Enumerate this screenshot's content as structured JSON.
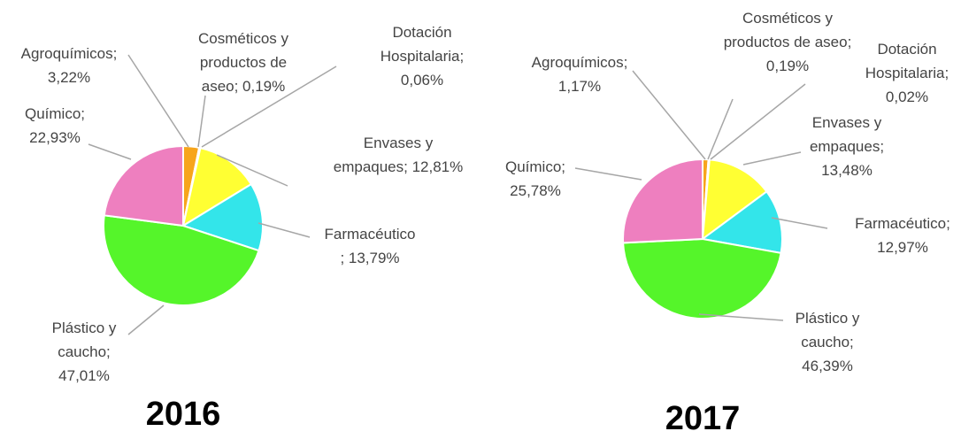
{
  "chart_data": [
    {
      "type": "pie",
      "title": "2016",
      "labels": [
        [
          "Agroquímicos;",
          "3,22%"
        ],
        [
          "Cosméticos y",
          "productos de",
          "aseo; 0,19%"
        ],
        [
          "Dotación",
          "Hospitalaria;",
          "0,06%"
        ],
        [
          "Envases y",
          "empaques; 12,81%"
        ],
        [
          "Farmacéutico",
          "; 13,79%"
        ],
        [
          "Plástico y",
          "caucho;",
          "47,01%"
        ],
        [
          "Químico;",
          "22,93%"
        ]
      ],
      "values": [
        3.22,
        0.19,
        0.06,
        12.81,
        13.79,
        47.01,
        22.93
      ],
      "colors": [
        "#f7a51c",
        "#c8f08a",
        "#b0b0b0",
        "#ffff33",
        "#33e5ea",
        "#55f52a",
        "#ee7fbf"
      ]
    },
    {
      "type": "pie",
      "title": "2017",
      "labels": [
        [
          "Agroquímicos;",
          "1,17%"
        ],
        [
          "Cosméticos y",
          "productos de aseo;",
          "0,19%"
        ],
        [
          "Dotación",
          "Hospitalaria;",
          "0,02%"
        ],
        [
          "Envases y",
          "empaques;",
          "13,48%"
        ],
        [
          "Farmacéutico;",
          "12,97%"
        ],
        [
          "Plástico y",
          "caucho;",
          "46,39%"
        ],
        [
          "Químico;",
          "25,78%"
        ]
      ],
      "values": [
        1.17,
        0.19,
        0.02,
        13.48,
        12.97,
        46.39,
        25.78
      ],
      "colors": [
        "#f7a51c",
        "#c8f08a",
        "#b0b0b0",
        "#ffff33",
        "#33e5ea",
        "#55f52a",
        "#ee7fbf"
      ]
    }
  ]
}
